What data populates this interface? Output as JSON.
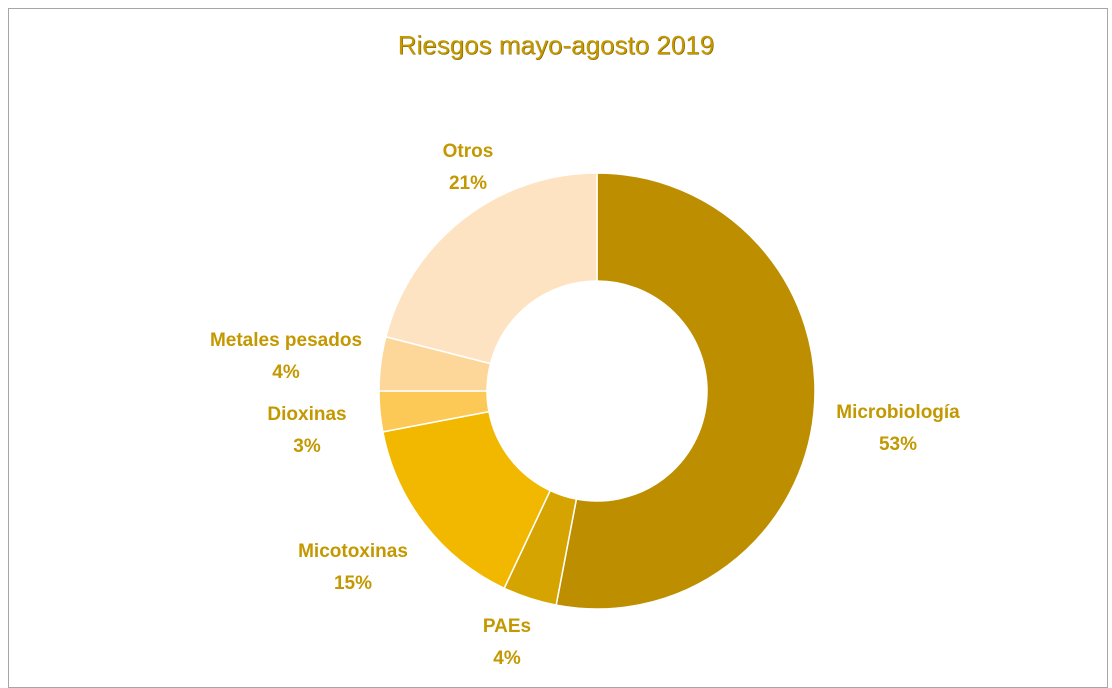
{
  "chart_data": {
    "type": "pie",
    "style": "donut",
    "title": "Riesgos mayo-agosto 2019",
    "slices": [
      {
        "name": "Microbiología",
        "value": 53,
        "label": "53%",
        "color": "#bd8e00"
      },
      {
        "name": "PAEs",
        "value": 4,
        "label": "4%",
        "color": "#d6a400"
      },
      {
        "name": "Micotoxinas",
        "value": 15,
        "label": "15%",
        "color": "#f2b800"
      },
      {
        "name": "Dioxinas",
        "value": 3,
        "label": "3%",
        "color": "#fdc956"
      },
      {
        "name": "Metales pesados",
        "value": 4,
        "label": "4%",
        "color": "#fdd79a"
      },
      {
        "name": "Otros",
        "value": 21,
        "label": "21%",
        "color": "#fee3c2"
      }
    ],
    "label_color": "#c39800",
    "legend": "none"
  }
}
